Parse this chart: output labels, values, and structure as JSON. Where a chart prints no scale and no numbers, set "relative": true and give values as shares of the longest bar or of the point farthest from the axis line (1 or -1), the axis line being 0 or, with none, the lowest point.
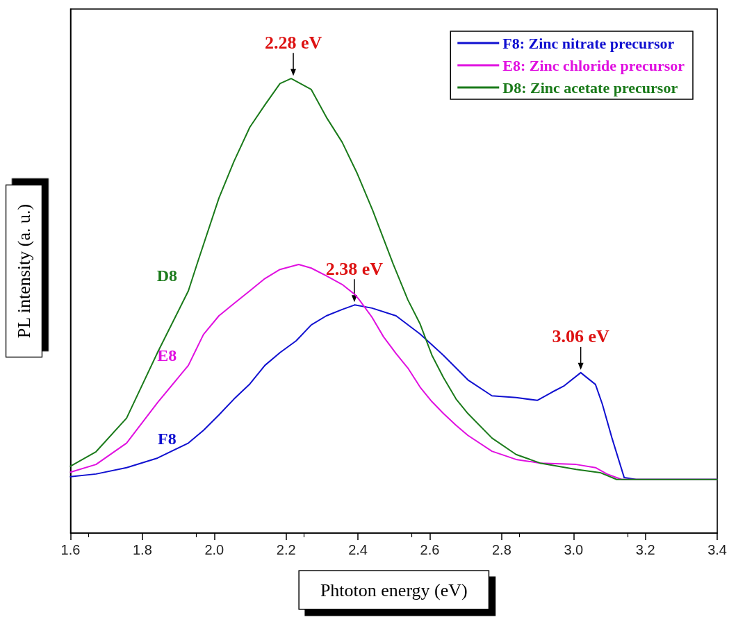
{
  "chart_data": {
    "type": "line",
    "relative": true,
    "xlabel": "Phtoton energy (eV)",
    "ylabel": "PL intensity (a. u.)",
    "xlim": [
      1.6,
      3.4
    ],
    "xticks": [
      1.6,
      1.8,
      {
        "value": 2.0,
        "label": "2.0"
      },
      2.2,
      2.4,
      2.6,
      2.8,
      {
        "value": 3.0,
        "label": "3.0"
      },
      3.2,
      3.4
    ],
    "legend": "top right",
    "marker": "none",
    "grid": false,
    "series": [
      {
        "name": "F8: Zinc nitrate precursor",
        "color": "#1010d0",
        "x": [
          1.6,
          1.671,
          1.756,
          1.842,
          1.928,
          1.97,
          2.013,
          2.055,
          2.099,
          2.141,
          2.183,
          2.228,
          2.27,
          2.312,
          2.356,
          2.391,
          2.439,
          2.506,
          2.573,
          2.638,
          2.706,
          2.773,
          2.84,
          2.899,
          2.94,
          2.974,
          3.02,
          3.061,
          3.08,
          3.107,
          3.141,
          3.174,
          3.4
        ],
        "values": [
          0.124,
          0.13,
          0.144,
          0.165,
          0.198,
          0.226,
          0.26,
          0.295,
          0.328,
          0.369,
          0.397,
          0.423,
          0.458,
          0.478,
          0.492,
          0.502,
          0.495,
          0.478,
          0.438,
          0.391,
          0.337,
          0.302,
          0.298,
          0.292,
          0.31,
          0.324,
          0.353,
          0.327,
          0.284,
          0.209,
          0.122,
          0.118,
          0.118
        ]
      },
      {
        "name": "E8: Zinc chloride precursor",
        "color": "#e010e0",
        "x": [
          1.6,
          1.671,
          1.756,
          1.842,
          1.928,
          1.97,
          2.013,
          2.055,
          2.099,
          2.141,
          2.183,
          2.235,
          2.27,
          2.312,
          2.356,
          2.391,
          2.404,
          2.439,
          2.471,
          2.506,
          2.539,
          2.573,
          2.606,
          2.638,
          2.673,
          2.706,
          2.773,
          2.84,
          2.907,
          3.007,
          3.061,
          3.093,
          3.134,
          3.4
        ],
        "values": [
          0.134,
          0.151,
          0.198,
          0.287,
          0.369,
          0.437,
          0.478,
          0.505,
          0.533,
          0.56,
          0.58,
          0.591,
          0.583,
          0.566,
          0.547,
          0.525,
          0.513,
          0.475,
          0.432,
          0.395,
          0.363,
          0.321,
          0.289,
          0.263,
          0.237,
          0.215,
          0.18,
          0.162,
          0.154,
          0.151,
          0.144,
          0.13,
          0.118,
          0.118
        ]
      },
      {
        "name": "D8: Zinc acetate precursor",
        "color": "#1a7a1a",
        "x": [
          1.6,
          1.671,
          1.756,
          1.842,
          1.928,
          1.953,
          2.013,
          2.055,
          2.099,
          2.141,
          2.183,
          2.214,
          2.27,
          2.312,
          2.356,
          2.398,
          2.441,
          2.498,
          2.539,
          2.573,
          2.606,
          2.638,
          2.673,
          2.706,
          2.773,
          2.84,
          2.907,
          3.007,
          3.074,
          3.12,
          3.4
        ],
        "values": [
          0.147,
          0.179,
          0.253,
          0.397,
          0.533,
          0.594,
          0.737,
          0.818,
          0.893,
          0.942,
          0.989,
          1.0,
          0.976,
          0.915,
          0.86,
          0.791,
          0.71,
          0.592,
          0.513,
          0.46,
          0.391,
          0.342,
          0.295,
          0.263,
          0.209,
          0.173,
          0.154,
          0.14,
          0.133,
          0.118,
          0.118
        ]
      }
    ],
    "annotations": [
      {
        "text": "2.28 eV",
        "x": 2.22,
        "y": 1.0
      },
      {
        "text": "2.38 eV",
        "x": 2.39,
        "y": 0.502
      },
      {
        "text": "3.06 eV",
        "x": 3.02,
        "y": 0.353
      },
      "D8",
      "E8",
      "F8"
    ]
  }
}
